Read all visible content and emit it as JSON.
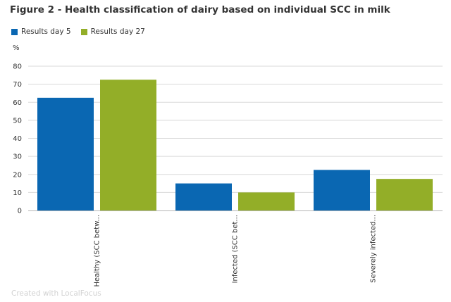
{
  "title": "Figure 2 - Health classification of dairy based on individual SCC in milk",
  "footer": "Created with LocalFocus",
  "chart_data": {
    "type": "bar",
    "unit": "%",
    "ylim": [
      0,
      80
    ],
    "yticks": [
      0,
      10,
      20,
      30,
      40,
      50,
      60,
      70,
      80
    ],
    "grid": true,
    "legend_position": "top-left",
    "categories": [
      "Healthy (SCC betw...",
      "Infected (SCC bet...",
      "Severely infected..."
    ],
    "series": [
      {
        "name": "Results day 5",
        "color": "#0a67b2",
        "values": [
          62.5,
          15,
          22.5
        ]
      },
      {
        "name": "Results day 27",
        "color": "#93ae28",
        "values": [
          72.5,
          10,
          17.5
        ]
      }
    ]
  }
}
